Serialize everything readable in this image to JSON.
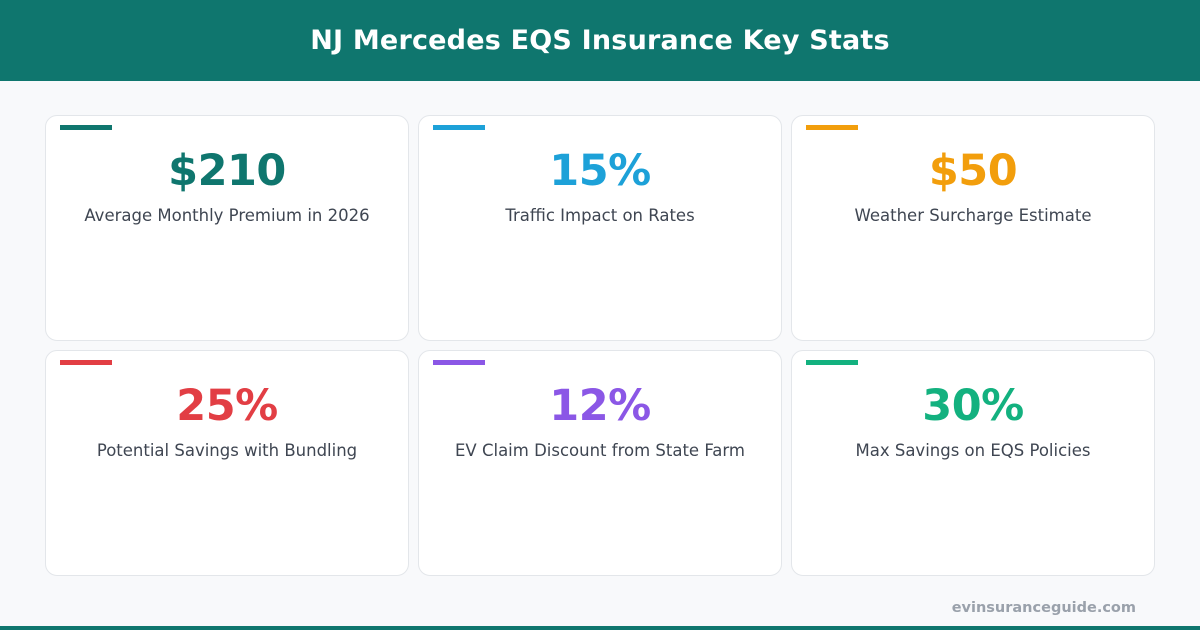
{
  "header": {
    "title": "NJ Mercedes EQS Insurance Key Stats"
  },
  "stats": [
    {
      "value": "$210",
      "label": "Average Monthly Premium in 2026",
      "color": "#0f766e"
    },
    {
      "value": "15%",
      "label": "Traffic Impact on Rates",
      "color": "#1da1d8"
    },
    {
      "value": "$50",
      "label": "Weather Surcharge Estimate",
      "color": "#f29e0c"
    },
    {
      "value": "25%",
      "label": "Potential Savings with Bundling",
      "color": "#e23e44"
    },
    {
      "value": "12%",
      "label": "EV Claim Discount from State Farm",
      "color": "#8b57e6"
    },
    {
      "value": "30%",
      "label": "Max Savings on EQS Policies",
      "color": "#13b17f"
    }
  ],
  "footer": {
    "url": "evinsuranceguide.com"
  },
  "colors": {
    "brand": "#0f766e",
    "background": "#f8f9fb"
  }
}
